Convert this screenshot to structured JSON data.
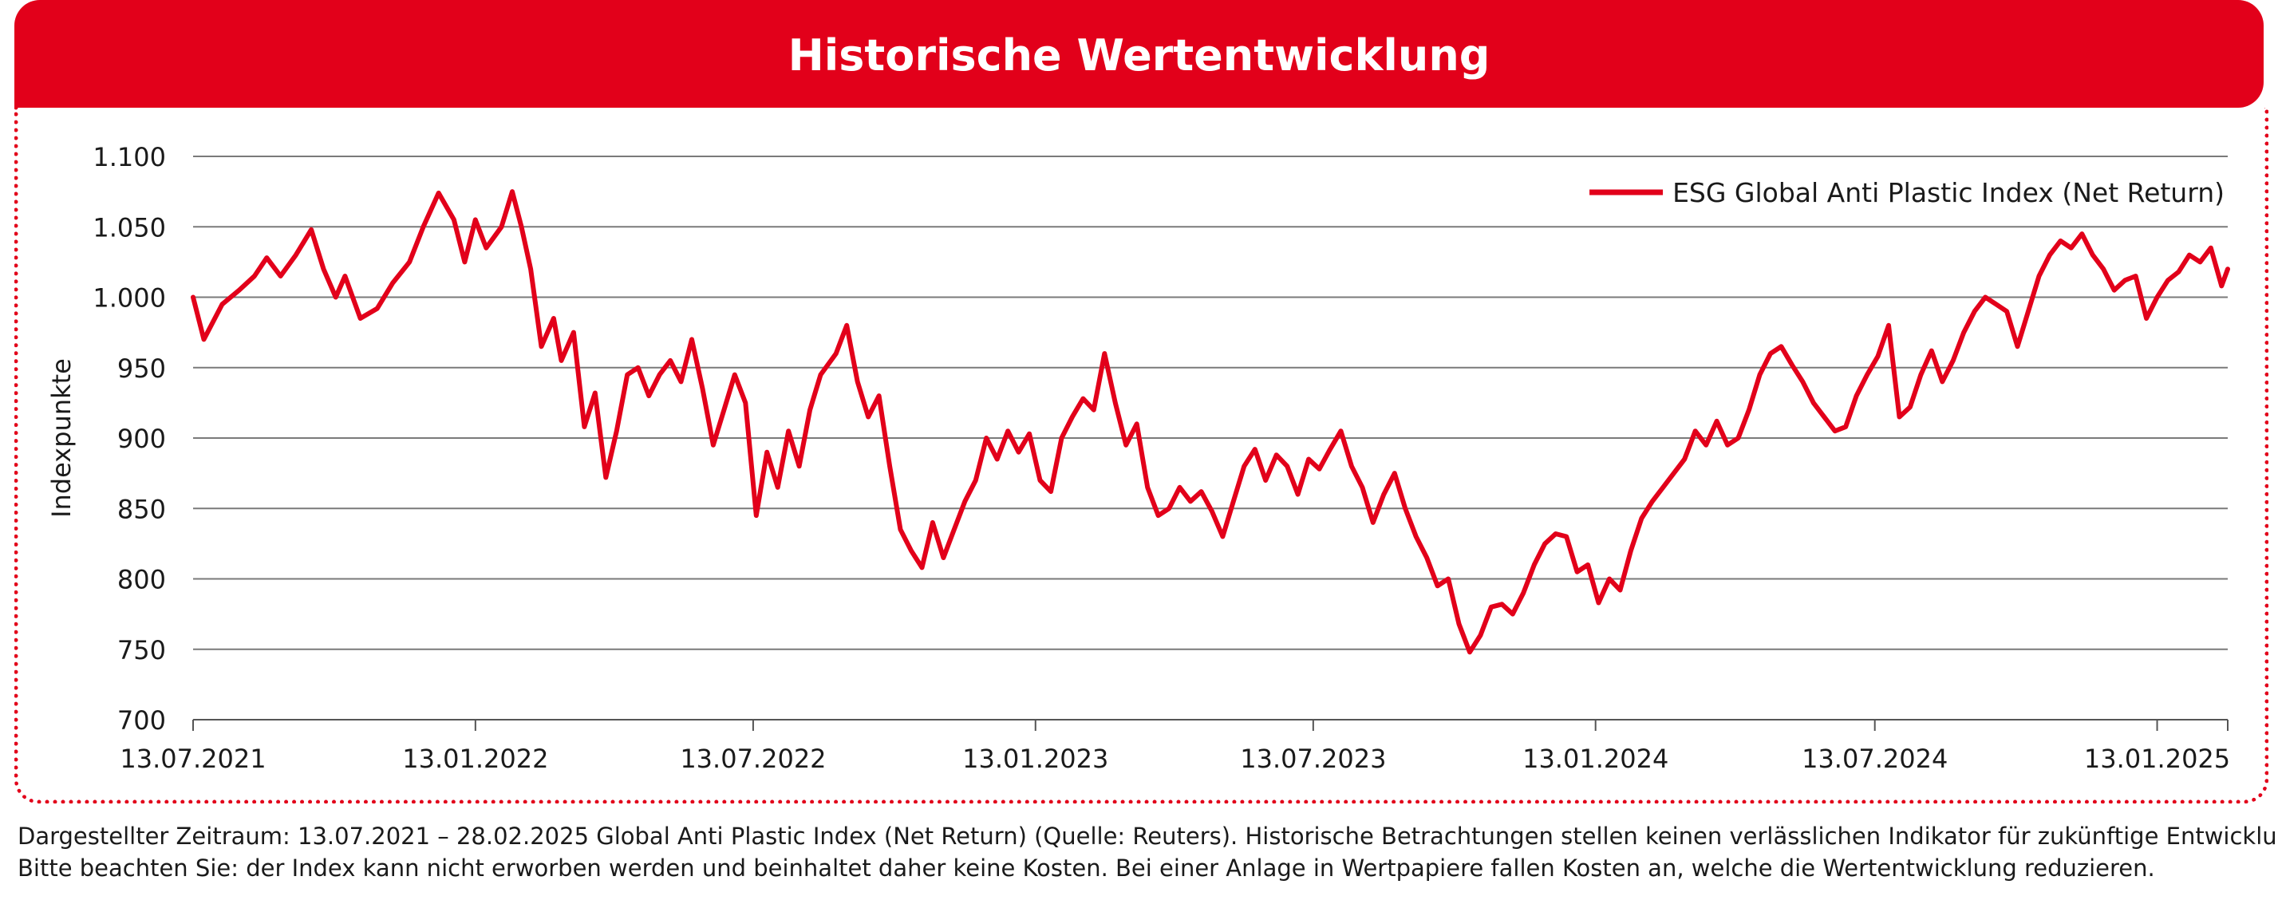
{
  "header": {
    "title": "Historische Wertentwicklung"
  },
  "colors": {
    "brand": "#e2001a",
    "series": "#e2001a",
    "grid": "#7a7a7a",
    "axis": "#555555"
  },
  "footnote": {
    "line1": "Dargestellter Zeitraum: 13.07.2021 – 28.02.2025 Global Anti Plastic Index (Net Return) (Quelle: Reuters). Historische Betrachtungen stellen keinen verlässlichen Indikator für zukünftige Entwicklungen dar.",
    "line2": "Bitte beachten Sie: der Index kann nicht erworben werden und beinhaltet daher keine Kosten. Bei einer Anlage in Wertpapiere fallen Kosten an, welche die Wertentwicklung reduzieren."
  },
  "chart_data": {
    "type": "line",
    "title": "",
    "xlabel": "",
    "ylabel": "Indexpunkte",
    "ylim": [
      700,
      1100
    ],
    "xlim": [
      "2021-07-13",
      "2025-02-28"
    ],
    "y_ticks": [
      700,
      750,
      800,
      850,
      900,
      950,
      1000,
      1050,
      1100
    ],
    "y_tick_labels": [
      "700",
      "750",
      "800",
      "850",
      "900",
      "950",
      "1.000",
      "1.050",
      "1.100"
    ],
    "x_ticks": [
      "2021-07-13",
      "2022-01-13",
      "2022-07-13",
      "2023-01-13",
      "2023-07-13",
      "2024-01-13",
      "2024-07-13",
      "2025-01-13"
    ],
    "x_tick_labels": [
      "13.07.2021",
      "13.01.2022",
      "13.07.2022",
      "13.01.2023",
      "13.07.2023",
      "13.01.2024",
      "13.07.2024",
      "13.01.2025"
    ],
    "grid": true,
    "legend_position": "top-right",
    "series": [
      {
        "name": "ESG Global Anti Plastic Index (Net Return)",
        "points": [
          [
            "2021-07-13",
            1000
          ],
          [
            "2021-07-20",
            970
          ],
          [
            "2021-08-01",
            995
          ],
          [
            "2021-08-12",
            1005
          ],
          [
            "2021-08-22",
            1015
          ],
          [
            "2021-08-30",
            1028
          ],
          [
            "2021-09-08",
            1015
          ],
          [
            "2021-09-18",
            1030
          ],
          [
            "2021-09-28",
            1048
          ],
          [
            "2021-10-06",
            1020
          ],
          [
            "2021-10-14",
            1000
          ],
          [
            "2021-10-20",
            1015
          ],
          [
            "2021-10-30",
            985
          ],
          [
            "2021-11-10",
            992
          ],
          [
            "2021-11-20",
            1010
          ],
          [
            "2021-12-01",
            1025
          ],
          [
            "2021-12-10",
            1050
          ],
          [
            "2021-12-20",
            1074
          ],
          [
            "2021-12-30",
            1055
          ],
          [
            "2022-01-06",
            1025
          ],
          [
            "2022-01-13",
            1055
          ],
          [
            "2022-01-20",
            1035
          ],
          [
            "2022-01-30",
            1050
          ],
          [
            "2022-02-06",
            1075
          ],
          [
            "2022-02-12",
            1050
          ],
          [
            "2022-02-18",
            1020
          ],
          [
            "2022-02-25",
            965
          ],
          [
            "2022-03-05",
            985
          ],
          [
            "2022-03-10",
            955
          ],
          [
            "2022-03-18",
            975
          ],
          [
            "2022-03-25",
            908
          ],
          [
            "2022-04-01",
            932
          ],
          [
            "2022-04-08",
            872
          ],
          [
            "2022-04-15",
            905
          ],
          [
            "2022-04-22",
            945
          ],
          [
            "2022-04-29",
            950
          ],
          [
            "2022-05-06",
            930
          ],
          [
            "2022-05-13",
            945
          ],
          [
            "2022-05-20",
            955
          ],
          [
            "2022-05-27",
            940
          ],
          [
            "2022-06-03",
            970
          ],
          [
            "2022-06-10",
            935
          ],
          [
            "2022-06-17",
            895
          ],
          [
            "2022-06-24",
            920
          ],
          [
            "2022-07-01",
            945
          ],
          [
            "2022-07-08",
            925
          ],
          [
            "2022-07-15",
            845
          ],
          [
            "2022-07-22",
            890
          ],
          [
            "2022-07-29",
            865
          ],
          [
            "2022-08-05",
            905
          ],
          [
            "2022-08-12",
            880
          ],
          [
            "2022-08-19",
            920
          ],
          [
            "2022-08-26",
            945
          ],
          [
            "2022-09-05",
            960
          ],
          [
            "2022-09-12",
            980
          ],
          [
            "2022-09-19",
            940
          ],
          [
            "2022-09-26",
            915
          ],
          [
            "2022-10-03",
            930
          ],
          [
            "2022-10-10",
            880
          ],
          [
            "2022-10-17",
            835
          ],
          [
            "2022-10-24",
            820
          ],
          [
            "2022-10-31",
            808
          ],
          [
            "2022-11-07",
            840
          ],
          [
            "2022-11-14",
            815
          ],
          [
            "2022-11-21",
            835
          ],
          [
            "2022-11-28",
            855
          ],
          [
            "2022-12-05",
            870
          ],
          [
            "2022-12-12",
            900
          ],
          [
            "2022-12-19",
            885
          ],
          [
            "2022-12-26",
            905
          ],
          [
            "2023-01-02",
            890
          ],
          [
            "2023-01-09",
            903
          ],
          [
            "2023-01-16",
            870
          ],
          [
            "2023-01-23",
            862
          ],
          [
            "2023-01-30",
            900
          ],
          [
            "2023-02-06",
            915
          ],
          [
            "2023-02-13",
            928
          ],
          [
            "2023-02-20",
            920
          ],
          [
            "2023-02-27",
            960
          ],
          [
            "2023-03-06",
            925
          ],
          [
            "2023-03-13",
            895
          ],
          [
            "2023-03-20",
            910
          ],
          [
            "2023-03-27",
            865
          ],
          [
            "2023-04-03",
            845
          ],
          [
            "2023-04-10",
            850
          ],
          [
            "2023-04-17",
            865
          ],
          [
            "2023-04-24",
            855
          ],
          [
            "2023-05-01",
            862
          ],
          [
            "2023-05-08",
            848
          ],
          [
            "2023-05-15",
            830
          ],
          [
            "2023-05-22",
            855
          ],
          [
            "2023-05-29",
            880
          ],
          [
            "2023-06-05",
            892
          ],
          [
            "2023-06-12",
            870
          ],
          [
            "2023-06-19",
            888
          ],
          [
            "2023-06-26",
            880
          ],
          [
            "2023-07-03",
            860
          ],
          [
            "2023-07-10",
            885
          ],
          [
            "2023-07-17",
            878
          ],
          [
            "2023-07-24",
            892
          ],
          [
            "2023-07-31",
            905
          ],
          [
            "2023-08-07",
            880
          ],
          [
            "2023-08-14",
            865
          ],
          [
            "2023-08-21",
            840
          ],
          [
            "2023-08-28",
            860
          ],
          [
            "2023-09-04",
            875
          ],
          [
            "2023-09-11",
            850
          ],
          [
            "2023-09-18",
            830
          ],
          [
            "2023-09-25",
            815
          ],
          [
            "2023-10-02",
            795
          ],
          [
            "2023-10-09",
            800
          ],
          [
            "2023-10-16",
            768
          ],
          [
            "2023-10-23",
            748
          ],
          [
            "2023-10-30",
            760
          ],
          [
            "2023-11-06",
            780
          ],
          [
            "2023-11-13",
            782
          ],
          [
            "2023-11-20",
            775
          ],
          [
            "2023-11-27",
            790
          ],
          [
            "2023-12-04",
            810
          ],
          [
            "2023-12-11",
            825
          ],
          [
            "2023-12-18",
            832
          ],
          [
            "2023-12-25",
            830
          ],
          [
            "2024-01-01",
            805
          ],
          [
            "2024-01-08",
            810
          ],
          [
            "2024-01-15",
            783
          ],
          [
            "2024-01-22",
            800
          ],
          [
            "2024-01-29",
            792
          ],
          [
            "2024-02-05",
            820
          ],
          [
            "2024-02-12",
            843
          ],
          [
            "2024-02-19",
            855
          ],
          [
            "2024-02-26",
            865
          ],
          [
            "2024-03-04",
            875
          ],
          [
            "2024-03-11",
            885
          ],
          [
            "2024-03-18",
            905
          ],
          [
            "2024-03-25",
            895
          ],
          [
            "2024-04-01",
            912
          ],
          [
            "2024-04-08",
            895
          ],
          [
            "2024-04-15",
            900
          ],
          [
            "2024-04-22",
            920
          ],
          [
            "2024-04-29",
            945
          ],
          [
            "2024-05-06",
            960
          ],
          [
            "2024-05-13",
            965
          ],
          [
            "2024-05-20",
            952
          ],
          [
            "2024-05-27",
            940
          ],
          [
            "2024-06-03",
            925
          ],
          [
            "2024-06-10",
            915
          ],
          [
            "2024-06-17",
            905
          ],
          [
            "2024-06-24",
            908
          ],
          [
            "2024-07-01",
            930
          ],
          [
            "2024-07-08",
            945
          ],
          [
            "2024-07-15",
            958
          ],
          [
            "2024-07-22",
            980
          ],
          [
            "2024-07-29",
            915
          ],
          [
            "2024-08-05",
            922
          ],
          [
            "2024-08-12",
            945
          ],
          [
            "2024-08-19",
            962
          ],
          [
            "2024-08-26",
            940
          ],
          [
            "2024-09-02",
            955
          ],
          [
            "2024-09-09",
            975
          ],
          [
            "2024-09-16",
            990
          ],
          [
            "2024-09-23",
            1000
          ],
          [
            "2024-09-30",
            995
          ],
          [
            "2024-10-07",
            990
          ],
          [
            "2024-10-14",
            965
          ],
          [
            "2024-10-21",
            990
          ],
          [
            "2024-10-28",
            1015
          ],
          [
            "2024-11-04",
            1030
          ],
          [
            "2024-11-11",
            1040
          ],
          [
            "2024-11-18",
            1035
          ],
          [
            "2024-11-25",
            1045
          ],
          [
            "2024-12-02",
            1030
          ],
          [
            "2024-12-09",
            1020
          ],
          [
            "2024-12-16",
            1005
          ],
          [
            "2024-12-23",
            1012
          ],
          [
            "2024-12-30",
            1015
          ],
          [
            "2025-01-06",
            985
          ],
          [
            "2025-01-13",
            1000
          ],
          [
            "2025-01-20",
            1012
          ],
          [
            "2025-01-27",
            1018
          ],
          [
            "2025-02-03",
            1030
          ],
          [
            "2025-02-10",
            1025
          ],
          [
            "2025-02-17",
            1035
          ],
          [
            "2025-02-24",
            1008
          ],
          [
            "2025-02-28",
            1020
          ]
        ]
      }
    ]
  }
}
